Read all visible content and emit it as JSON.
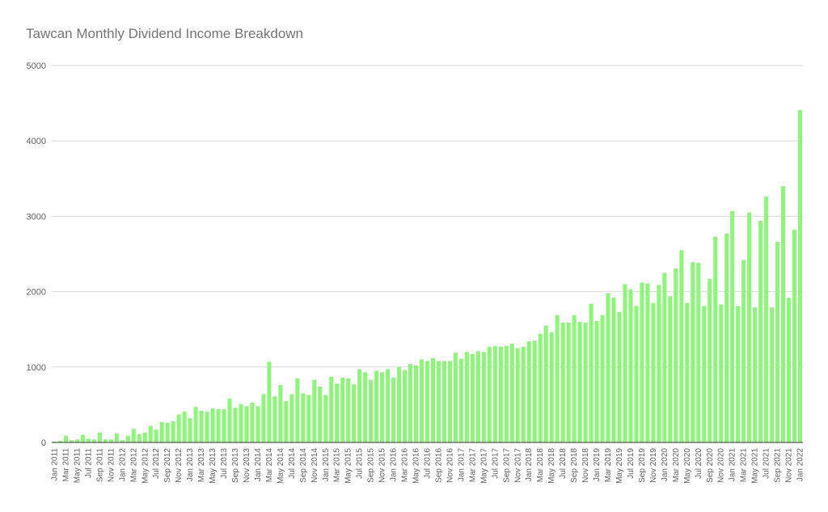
{
  "chart_data": {
    "type": "bar",
    "title": "Tawcan Monthly Dividend Income Breakdown",
    "xlabel": "",
    "ylabel": "",
    "ylim": [
      0,
      5000
    ],
    "yticks": [
      0,
      1000,
      2000,
      3000,
      4000,
      5000
    ],
    "grid": true,
    "legend": "none",
    "bar_color": "#8cf57a",
    "x_tick_labels": [
      "Jan 2011",
      "Mar 2011",
      "May 2011",
      "Jul 2011",
      "Sep 2011",
      "Nov 2011",
      "Jan 2012",
      "Mar 2012",
      "May 2012",
      "Jul 2012",
      "Sep 2012",
      "Nov 2012",
      "Jan 2013",
      "Mar 2013",
      "May 2013",
      "Jul 2013",
      "Sep 2013",
      "Nov 2013",
      "Jan 2014",
      "Mar 2014",
      "May 2014",
      "Jul 2014",
      "Sep 2014",
      "Nov 2014",
      "Jan 2015",
      "Mar 2015",
      "May 2015",
      "Jul 2015",
      "Sep 2015",
      "Nov 2015",
      "Jan 2016",
      "Mar 2016",
      "May 2016",
      "Jul 2016",
      "Sep 2016",
      "Nov 2016",
      "Jan 2017",
      "Mar 2017",
      "May 2017",
      "Jul 2017",
      "Sep 2017",
      "Nov 2017",
      "Jan 2018",
      "Mar 2018",
      "May 2018",
      "Jul 2018",
      "Sep 2018",
      "Nov 2018",
      "Jan 2019",
      "Mar 2019",
      "May 2019",
      "Jul 2019",
      "Sep 2019",
      "Nov 2019",
      "Jan 2020",
      "Mar 2020",
      "May 2020",
      "Jul 2020",
      "Sep 2020",
      "Nov 2020",
      "Jan 2021",
      "Mar 2021",
      "May 2021",
      "Jul 2021",
      "Sep 2021",
      "Nov 2021",
      "Jan 2022"
    ],
    "categories": [
      "Jan 2011",
      "Feb 2011",
      "Mar 2011",
      "Apr 2011",
      "May 2011",
      "Jun 2011",
      "Jul 2011",
      "Aug 2011",
      "Sep 2011",
      "Oct 2011",
      "Nov 2011",
      "Dec 2011",
      "Jan 2012",
      "Feb 2012",
      "Mar 2012",
      "Apr 2012",
      "May 2012",
      "Jun 2012",
      "Jul 2012",
      "Aug 2012",
      "Sep 2012",
      "Oct 2012",
      "Nov 2012",
      "Dec 2012",
      "Jan 2013",
      "Feb 2013",
      "Mar 2013",
      "Apr 2013",
      "May 2013",
      "Jun 2013",
      "Jul 2013",
      "Aug 2013",
      "Sep 2013",
      "Oct 2013",
      "Nov 2013",
      "Dec 2013",
      "Jan 2014",
      "Feb 2014",
      "Mar 2014",
      "Apr 2014",
      "May 2014",
      "Jun 2014",
      "Jul 2014",
      "Aug 2014",
      "Sep 2014",
      "Oct 2014",
      "Nov 2014",
      "Dec 2014",
      "Jan 2015",
      "Feb 2015",
      "Mar 2015",
      "Apr 2015",
      "May 2015",
      "Jun 2015",
      "Jul 2015",
      "Aug 2015",
      "Sep 2015",
      "Oct 2015",
      "Nov 2015",
      "Dec 2015",
      "Jan 2016",
      "Feb 2016",
      "Mar 2016",
      "Apr 2016",
      "May 2016",
      "Jun 2016",
      "Jul 2016",
      "Aug 2016",
      "Sep 2016",
      "Oct 2016",
      "Nov 2016",
      "Dec 2016",
      "Jan 2017",
      "Feb 2017",
      "Mar 2017",
      "Apr 2017",
      "May 2017",
      "Jun 2017",
      "Jul 2017",
      "Aug 2017",
      "Sep 2017",
      "Oct 2017",
      "Nov 2017",
      "Dec 2017",
      "Jan 2018",
      "Feb 2018",
      "Mar 2018",
      "Apr 2018",
      "May 2018",
      "Jun 2018",
      "Jul 2018",
      "Aug 2018",
      "Sep 2018",
      "Oct 2018",
      "Nov 2018",
      "Dec 2018",
      "Jan 2019",
      "Feb 2019",
      "Mar 2019",
      "Apr 2019",
      "May 2019",
      "Jun 2019",
      "Jul 2019",
      "Aug 2019",
      "Sep 2019",
      "Oct 2019",
      "Nov 2019",
      "Dec 2019",
      "Jan 2020",
      "Feb 2020",
      "Mar 2020",
      "Apr 2020",
      "May 2020",
      "Jun 2020",
      "Jul 2020",
      "Aug 2020",
      "Sep 2020",
      "Oct 2020",
      "Nov 2020",
      "Dec 2020",
      "Jan 2021",
      "Feb 2021",
      "Mar 2021",
      "Apr 2021",
      "May 2021",
      "Jun 2021",
      "Jul 2021",
      "Aug 2021",
      "Sep 2021",
      "Oct 2021",
      "Nov 2021",
      "Dec 2021",
      "Jan 2022"
    ],
    "values": [
      10,
      20,
      90,
      30,
      40,
      100,
      50,
      40,
      130,
      40,
      40,
      120,
      30,
      90,
      180,
      110,
      130,
      220,
      170,
      270,
      260,
      280,
      370,
      410,
      320,
      470,
      420,
      410,
      450,
      440,
      440,
      580,
      460,
      510,
      480,
      530,
      480,
      640,
      1070,
      610,
      760,
      550,
      640,
      850,
      650,
      630,
      830,
      740,
      630,
      870,
      780,
      860,
      850,
      770,
      970,
      930,
      830,
      950,
      930,
      970,
      860,
      1000,
      960,
      1040,
      1020,
      1100,
      1080,
      1120,
      1080,
      1080,
      1080,
      1190,
      1110,
      1200,
      1170,
      1210,
      1200,
      1270,
      1280,
      1270,
      1280,
      1310,
      1250,
      1270,
      1340,
      1350,
      1440,
      1550,
      1460,
      1690,
      1590,
      1590,
      1690,
      1600,
      1590,
      1840,
      1610,
      1690,
      1980,
      1920,
      1730,
      2100,
      2030,
      1810,
      2120,
      2110,
      1850,
      2090,
      2250,
      1940,
      2310,
      2550,
      1850,
      2390,
      2380,
      1810,
      2170,
      2730,
      1830,
      2770,
      3070,
      1810,
      2420,
      3050,
      1790,
      2940,
      3260,
      1790,
      2660,
      3400,
      1920,
      2820,
      4410
    ]
  }
}
